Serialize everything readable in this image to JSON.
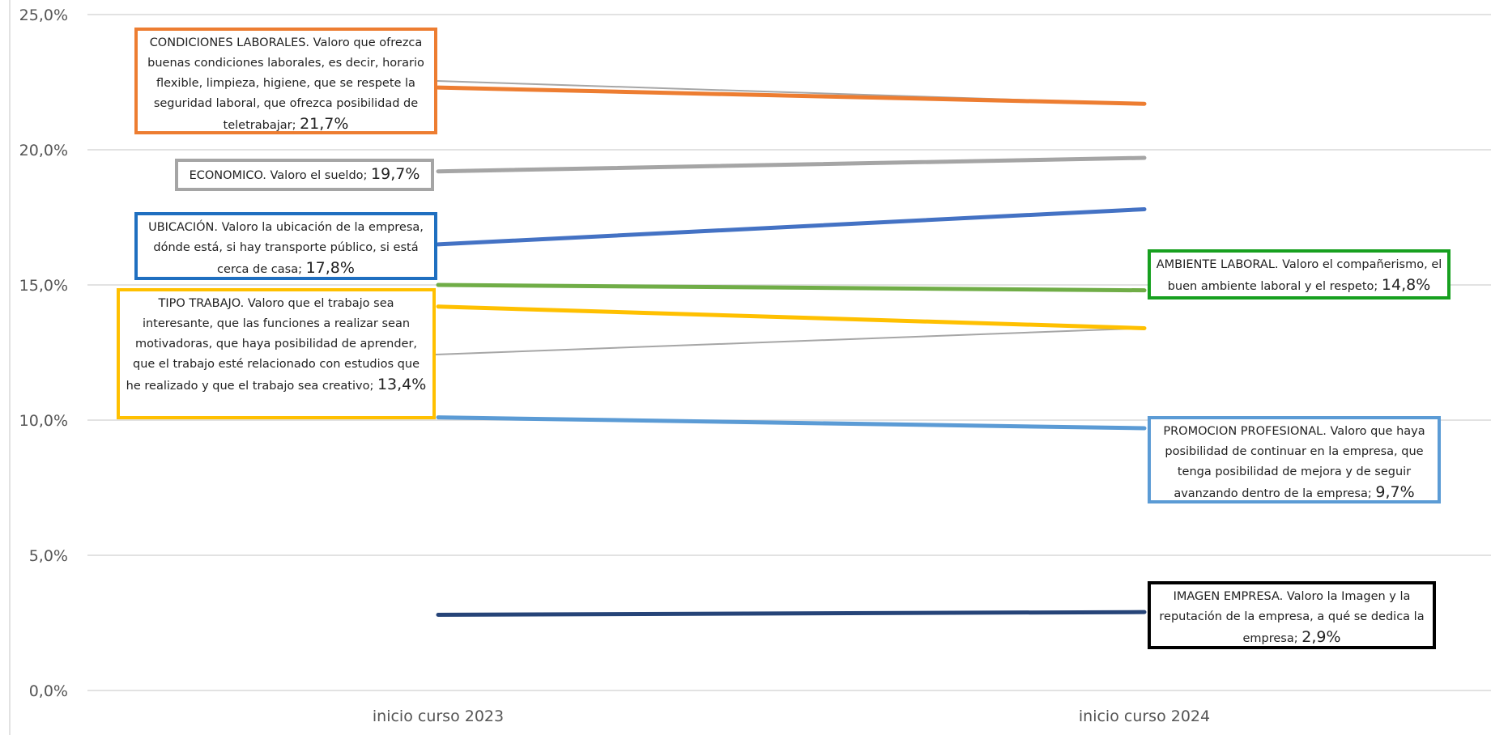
{
  "chart_data": {
    "type": "line",
    "categories": [
      "inicio curso 2023",
      "inicio curso 2024"
    ],
    "ylim": [
      0,
      25
    ],
    "yticks": [
      "0,0%",
      "5,0%",
      "10,0%",
      "15,0%",
      "20,0%",
      "25,0%"
    ],
    "grid": true,
    "series": [
      {
        "name": "CONDICIONES LABORALES. Valoro que ofrezca buenas condiciones laborales, es decir, horario flexible, limpieza, higiene, que se respete la seguridad laboral, que ofrezca posibilidad de teletrabajar",
        "values": [
          22.3,
          21.7
        ],
        "color": "#ED7D31",
        "value_label": "21,7%"
      },
      {
        "name": "ECONOMICO. Valoro el sueldo",
        "values": [
          19.2,
          19.7
        ],
        "color": "#A5A5A5",
        "value_label": "19,7%"
      },
      {
        "name": "UBICACIÓN. Valoro la ubicación de la empresa, dónde está, si hay transporte público, si está cerca de casa",
        "values": [
          16.5,
          17.8
        ],
        "color": "#4472C4",
        "value_label": "17,8%"
      },
      {
        "name": "AMBIENTE LABORAL. Valoro el compañerismo, el buen ambiente laboral y el respeto",
        "values": [
          15.0,
          14.8
        ],
        "color": "#70AD47",
        "value_label": "14,8%"
      },
      {
        "name": "TIPO TRABAJO. Valoro que el trabajo sea interesante, que las funciones a realizar sean motivadoras, que haya posibilidad de aprender, que el trabajo esté relacionado con estudios que he realizado y que el trabajo sea creativo",
        "values": [
          14.2,
          13.4
        ],
        "color": "#FFC000",
        "value_label": "13,4%"
      },
      {
        "name": "PROMOCION PROFESIONAL. Valoro que haya posibilidad de continuar en la empresa, que tenga posibilidad de mejora y de seguir avanzando dentro de la empresa",
        "values": [
          10.1,
          9.7
        ],
        "color": "#5B9BD5",
        "value_label": "9,7%"
      },
      {
        "name": "IMAGEN EMPRESA. Valoro la Imagen y la reputación de la empresa, a qué se dedica la empresa",
        "values": [
          2.8,
          2.9
        ],
        "color": "#264478",
        "value_label": "2,9%"
      }
    ]
  }
}
